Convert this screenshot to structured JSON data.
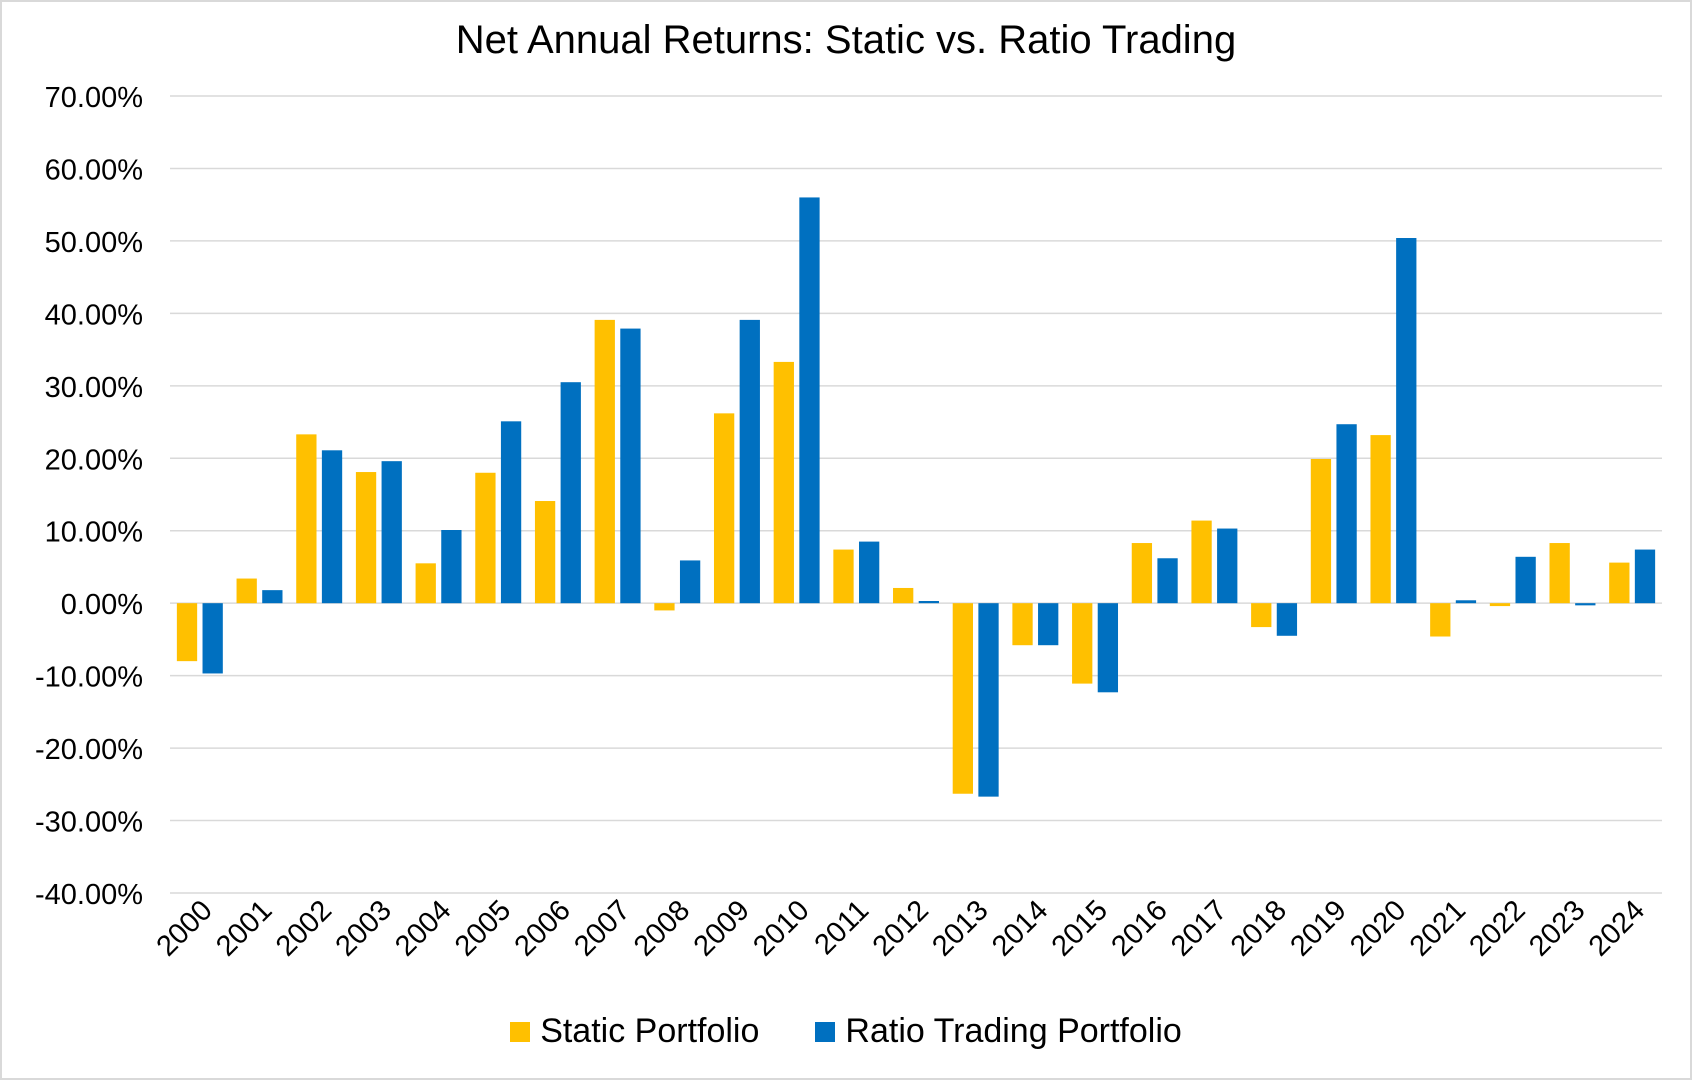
{
  "chart_data": {
    "type": "bar",
    "title": "Net Annual Returns: Static vs. Ratio Trading",
    "xlabel": "",
    "ylabel": "",
    "ylim": [
      -40,
      70
    ],
    "yticks": [
      "70.00%",
      "60.00%",
      "50.00%",
      "40.00%",
      "30.00%",
      "20.00%",
      "10.00%",
      "0.00%",
      "-10.00%",
      "-20.00%",
      "-30.00%",
      "-40.00%"
    ],
    "grid": true,
    "legend_position": "bottom",
    "categories": [
      "2000",
      "2001",
      "2002",
      "2003",
      "2004",
      "2005",
      "2006",
      "2007",
      "2008",
      "2009",
      "2010",
      "2011",
      "2012",
      "2013",
      "2014",
      "2015",
      "2016",
      "2017",
      "2018",
      "2019",
      "2020",
      "2021",
      "2022",
      "2023",
      "2024"
    ],
    "series": [
      {
        "name": "Static Portfolio",
        "color": "#FFC000",
        "values": [
          -8.0,
          3.4,
          23.3,
          18.1,
          5.5,
          18.0,
          14.1,
          39.1,
          -1.0,
          26.2,
          33.3,
          7.4,
          2.1,
          -26.3,
          -5.8,
          -11.1,
          8.3,
          11.4,
          -3.3,
          19.9,
          23.2,
          -4.6,
          -0.4,
          8.3,
          5.6
        ]
      },
      {
        "name": "Ratio Trading Portfolio",
        "color": "#0070C0",
        "values": [
          -9.7,
          1.8,
          21.1,
          19.6,
          10.1,
          25.1,
          30.5,
          37.9,
          5.9,
          39.1,
          56.0,
          8.5,
          0.3,
          -26.7,
          -5.8,
          -12.3,
          6.2,
          10.3,
          -4.5,
          24.7,
          50.4,
          0.4,
          6.4,
          -0.3,
          7.4
        ]
      }
    ]
  }
}
